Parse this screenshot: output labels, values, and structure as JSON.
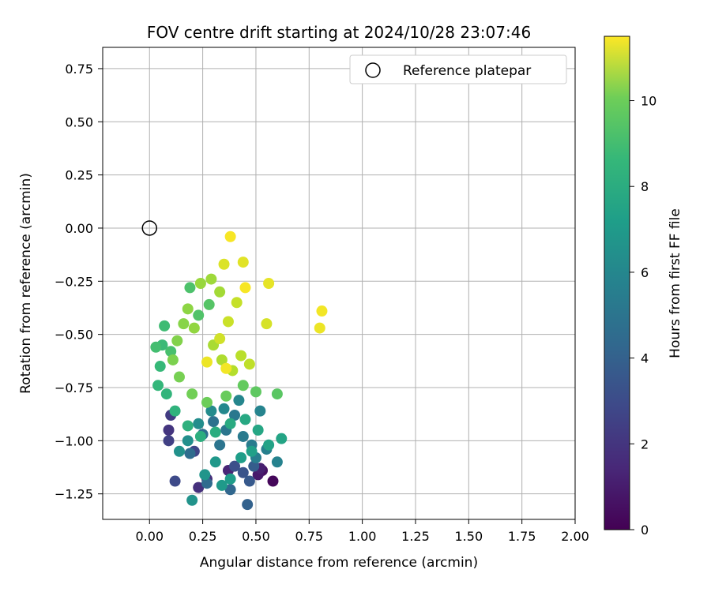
{
  "chart_data": {
    "type": "scatter",
    "title": "FOV centre drift starting at 2024/10/28 23:07:46",
    "xlabel": "Angular distance from reference (arcmin)",
    "ylabel": "Rotation from reference (arcmin)",
    "xlim": [
      -0.22,
      2.0
    ],
    "ylim": [
      -1.37,
      0.85
    ],
    "xticks": [
      0.0,
      0.25,
      0.5,
      0.75,
      1.0,
      1.25,
      1.5,
      1.75,
      2.0
    ],
    "xtick_labels": [
      "0.00",
      "0.25",
      "0.50",
      "0.75",
      "1.00",
      "1.25",
      "1.50",
      "1.75",
      "2.00"
    ],
    "yticks": [
      0.75,
      0.5,
      0.25,
      0.0,
      -0.25,
      -0.5,
      -0.75,
      -1.0,
      -1.25
    ],
    "ytick_labels": [
      "0.75",
      "0.50",
      "0.25",
      "0.00",
      "−0.25",
      "−0.50",
      "−0.75",
      "−1.00",
      "−1.25"
    ],
    "grid": true,
    "legend": {
      "position": "top-right",
      "entries": [
        "Reference platepar"
      ]
    },
    "reference_point": {
      "x": 0.0,
      "y": 0.0,
      "marker": "open-circle"
    },
    "colorbar": {
      "label": "Hours from first FF file",
      "colormap": "viridis",
      "range": [
        0,
        11.5
      ],
      "ticks": [
        0,
        2,
        4,
        6,
        8,
        10
      ],
      "tick_labels": [
        "0",
        "2",
        "4",
        "6",
        "8",
        "10"
      ]
    },
    "series": [
      {
        "points": [
          {
            "x": 0.58,
            "y": -1.19,
            "c": 0.2
          },
          {
            "x": 0.53,
            "y": -1.14,
            "c": 0.5
          },
          {
            "x": 0.51,
            "y": -1.16,
            "c": 0.8
          },
          {
            "x": 0.52,
            "y": -1.13,
            "c": 1.0
          },
          {
            "x": 0.37,
            "y": -1.14,
            "c": 1.2
          },
          {
            "x": 0.27,
            "y": -1.18,
            "c": 1.5
          },
          {
            "x": 0.23,
            "y": -1.22,
            "c": 1.6
          },
          {
            "x": 0.09,
            "y": -0.95,
            "c": 1.8
          },
          {
            "x": 0.1,
            "y": -0.88,
            "c": 2.0
          },
          {
            "x": 0.09,
            "y": -1.0,
            "c": 2.2
          },
          {
            "x": 0.21,
            "y": -1.05,
            "c": 2.4
          },
          {
            "x": 0.12,
            "y": -1.19,
            "c": 2.6
          },
          {
            "x": 0.4,
            "y": -1.12,
            "c": 2.8
          },
          {
            "x": 0.44,
            "y": -1.15,
            "c": 3.0
          },
          {
            "x": 0.47,
            "y": -1.19,
            "c": 3.2
          },
          {
            "x": 0.49,
            "y": -1.12,
            "c": 3.4
          },
          {
            "x": 0.46,
            "y": -1.3,
            "c": 3.6
          },
          {
            "x": 0.38,
            "y": -1.23,
            "c": 3.8
          },
          {
            "x": 0.27,
            "y": -1.2,
            "c": 4.0
          },
          {
            "x": 0.19,
            "y": -1.06,
            "c": 4.1
          },
          {
            "x": 0.25,
            "y": -0.97,
            "c": 4.2
          },
          {
            "x": 0.3,
            "y": -0.91,
            "c": 4.3
          },
          {
            "x": 0.33,
            "y": -1.02,
            "c": 4.4
          },
          {
            "x": 0.36,
            "y": -0.95,
            "c": 4.5
          },
          {
            "x": 0.4,
            "y": -0.88,
            "c": 4.6
          },
          {
            "x": 0.44,
            "y": -0.98,
            "c": 4.7
          },
          {
            "x": 0.48,
            "y": -1.02,
            "c": 4.8
          },
          {
            "x": 0.5,
            "y": -1.08,
            "c": 4.9
          },
          {
            "x": 0.55,
            "y": -1.04,
            "c": 5.0
          },
          {
            "x": 0.6,
            "y": -1.1,
            "c": 5.1
          },
          {
            "x": 0.52,
            "y": -0.86,
            "c": 5.2
          },
          {
            "x": 0.42,
            "y": -0.81,
            "c": 5.3
          },
          {
            "x": 0.35,
            "y": -0.85,
            "c": 5.4
          },
          {
            "x": 0.29,
            "y": -0.86,
            "c": 5.5
          },
          {
            "x": 0.23,
            "y": -0.92,
            "c": 5.6
          },
          {
            "x": 0.18,
            "y": -1.0,
            "c": 5.7
          },
          {
            "x": 0.14,
            "y": -1.05,
            "c": 5.8
          },
          {
            "x": 0.2,
            "y": -1.28,
            "c": 5.9
          },
          {
            "x": 0.26,
            "y": -1.16,
            "c": 6.0
          },
          {
            "x": 0.31,
            "y": -1.1,
            "c": 6.1
          },
          {
            "x": 0.34,
            "y": -1.21,
            "c": 6.2
          },
          {
            "x": 0.38,
            "y": -1.18,
            "c": 6.3
          },
          {
            "x": 0.43,
            "y": -1.08,
            "c": 6.4
          },
          {
            "x": 0.48,
            "y": -1.05,
            "c": 6.5
          },
          {
            "x": 0.56,
            "y": -1.02,
            "c": 6.6
          },
          {
            "x": 0.62,
            "y": -0.99,
            "c": 6.7
          },
          {
            "x": 0.51,
            "y": -0.95,
            "c": 6.8
          },
          {
            "x": 0.45,
            "y": -0.9,
            "c": 6.9
          },
          {
            "x": 0.38,
            "y": -0.92,
            "c": 7.0
          },
          {
            "x": 0.31,
            "y": -0.96,
            "c": 7.1
          },
          {
            "x": 0.24,
            "y": -0.98,
            "c": 7.2
          },
          {
            "x": 0.18,
            "y": -0.93,
            "c": 7.3
          },
          {
            "x": 0.12,
            "y": -0.86,
            "c": 7.4
          },
          {
            "x": 0.08,
            "y": -0.78,
            "c": 7.5
          },
          {
            "x": 0.04,
            "y": -0.74,
            "c": 7.6
          },
          {
            "x": 0.05,
            "y": -0.65,
            "c": 7.7
          },
          {
            "x": 0.06,
            "y": -0.55,
            "c": 7.8
          },
          {
            "x": 0.07,
            "y": -0.46,
            "c": 7.9
          },
          {
            "x": 0.03,
            "y": -0.56,
            "c": 8.0
          },
          {
            "x": 0.1,
            "y": -0.58,
            "c": 8.1
          },
          {
            "x": 0.19,
            "y": -0.28,
            "c": 8.2
          },
          {
            "x": 0.23,
            "y": -0.41,
            "c": 8.3
          },
          {
            "x": 0.28,
            "y": -0.36,
            "c": 8.4
          },
          {
            "x": 0.6,
            "y": -0.78,
            "c": 8.5
          },
          {
            "x": 0.5,
            "y": -0.77,
            "c": 8.6
          },
          {
            "x": 0.44,
            "y": -0.74,
            "c": 8.7
          },
          {
            "x": 0.36,
            "y": -0.79,
            "c": 8.8
          },
          {
            "x": 0.27,
            "y": -0.82,
            "c": 8.9
          },
          {
            "x": 0.2,
            "y": -0.78,
            "c": 9.0
          },
          {
            "x": 0.14,
            "y": -0.7,
            "c": 9.1
          },
          {
            "x": 0.11,
            "y": -0.62,
            "c": 9.2
          },
          {
            "x": 0.13,
            "y": -0.53,
            "c": 9.3
          },
          {
            "x": 0.16,
            "y": -0.45,
            "c": 9.4
          },
          {
            "x": 0.18,
            "y": -0.38,
            "c": 9.5
          },
          {
            "x": 0.21,
            "y": -0.47,
            "c": 9.6
          },
          {
            "x": 0.24,
            "y": -0.26,
            "c": 9.7
          },
          {
            "x": 0.29,
            "y": -0.24,
            "c": 9.8
          },
          {
            "x": 0.33,
            "y": -0.3,
            "c": 9.9
          },
          {
            "x": 0.3,
            "y": -0.55,
            "c": 10.0
          },
          {
            "x": 0.34,
            "y": -0.62,
            "c": 10.1
          },
          {
            "x": 0.39,
            "y": -0.67,
            "c": 10.2
          },
          {
            "x": 0.43,
            "y": -0.6,
            "c": 10.3
          },
          {
            "x": 0.47,
            "y": -0.64,
            "c": 10.4
          },
          {
            "x": 0.41,
            "y": -0.35,
            "c": 10.5
          },
          {
            "x": 0.37,
            "y": -0.44,
            "c": 10.6
          },
          {
            "x": 0.33,
            "y": -0.52,
            "c": 10.7
          },
          {
            "x": 0.55,
            "y": -0.45,
            "c": 10.8
          },
          {
            "x": 0.35,
            "y": -0.17,
            "c": 10.9
          },
          {
            "x": 0.44,
            "y": -0.16,
            "c": 11.0
          },
          {
            "x": 0.56,
            "y": -0.26,
            "c": 11.1
          },
          {
            "x": 0.8,
            "y": -0.47,
            "c": 11.2
          },
          {
            "x": 0.81,
            "y": -0.39,
            "c": 11.3
          },
          {
            "x": 0.38,
            "y": -0.04,
            "c": 11.4
          },
          {
            "x": 0.45,
            "y": -0.28,
            "c": 11.4
          },
          {
            "x": 0.27,
            "y": -0.63,
            "c": 11.2
          },
          {
            "x": 0.36,
            "y": -0.66,
            "c": 11.3
          }
        ]
      }
    ]
  }
}
